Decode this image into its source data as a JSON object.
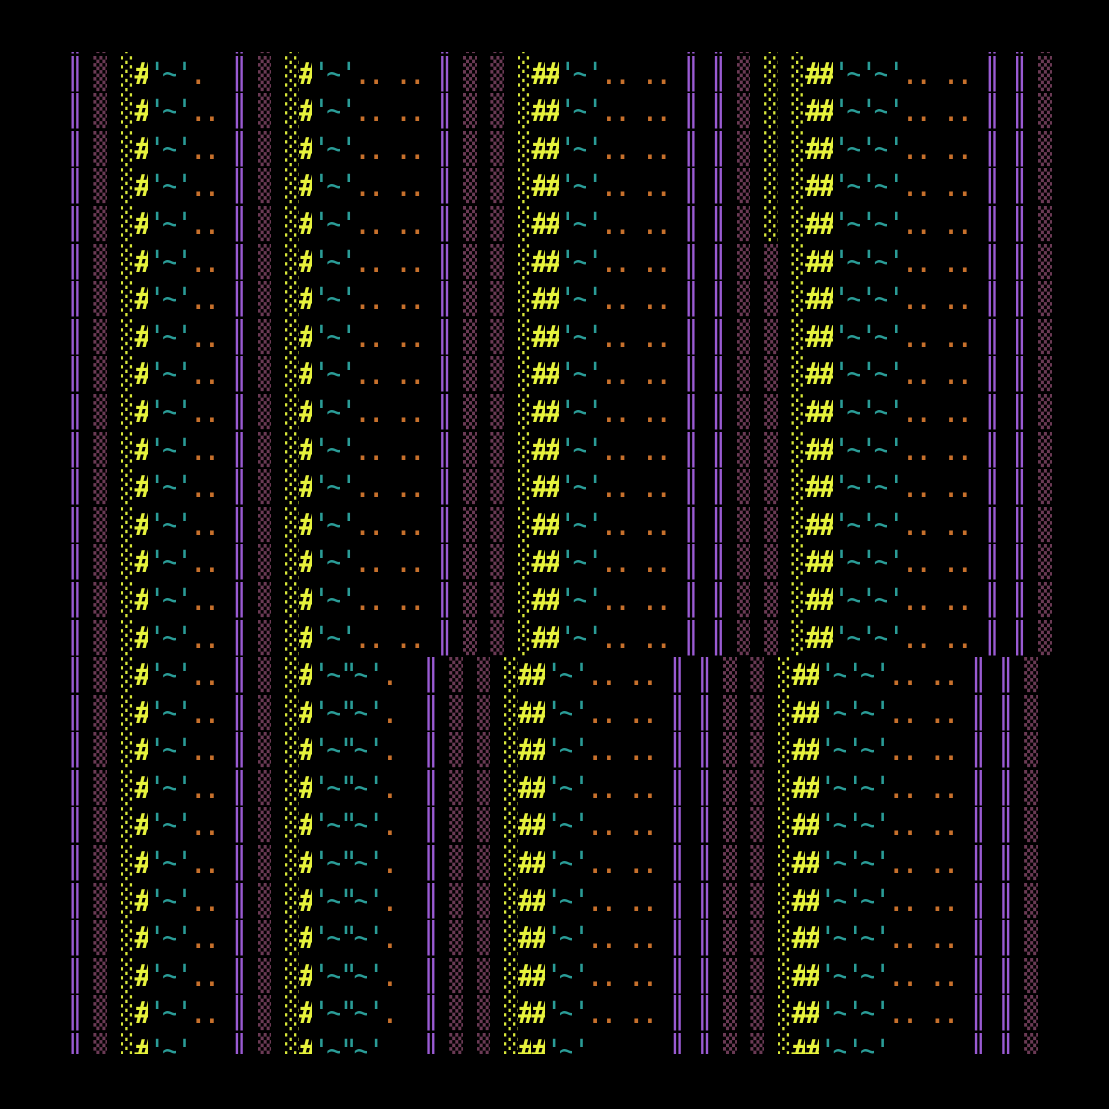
{
  "art": {
    "rows": [
      "║ ▒ ░#'~'.  ║ ▒ ░#'~'.. .. ║ ▒ ▒ ░##'~'.. .. ║ ║ ▒ ░ ░##'~'~'.. .. ║ ║ ▒ ",
      "║ ▒ ░#'~'.  ║ ▒ ░#'~'.. .. ║ ▒ ▒ ░##'~'.. .. ║ ║ ▒ ░ ░##'~'~'.. .. ║ ║ ▒ ",
      "║ ▒ ░#'~'.. ║ ▒ ░#'~'.. .. ║ ▒ ▒ ░##'~'.. .. ║ ║ ▒ ░ ░##'~'~'.. .. ║ ║ ▒ ",
      "║ ▒ ░#'~'.. ║ ▒ ░#'~'.. .. ║ ▒ ▒ ░##'~'.. .. ║ ║ ▒ ░ ░##'~'~'.. .. ║ ║ ▒ ",
      "║ ▒ ░#'~'.. ║ ▒ ░#'~'.. .. ║ ▒ ▒ ░##'~'.. .. ║ ║ ▒ ░ ░##'~'~'.. .. ║ ║ ▒ ",
      "║ ▒ ░#'~'.. ║ ▒ ░#'~'.. .. ║ ▒ ▒ ░##'~'.. .. ║ ║ ▒ ░ ░##'~'~'.. .. ║ ║ ▒ ",
      "║ ▒ ░#'~'.. ║ ▒ ░#'~'.. .. ║ ▒ ▒ ░##'~'.. .. ║ ║ ▒ ▒ ░##'~'~'.. .. ║ ║ ▒ ",
      "║ ▒ ░#'~'.. ║ ▒ ░#'~'.. .. ║ ▒ ▒ ░##'~'.. .. ║ ║ ▒ ▒ ░##'~'~'.. .. ║ ║ ▒ ",
      "║ ▒ ░#'~'.. ║ ▒ ░#'~'.. .. ║ ▒ ▒ ░##'~'.. .. ║ ║ ▒ ▒ ░##'~'~'.. .. ║ ║ ▒ ",
      "║ ▒ ░#'~'.. ║ ▒ ░#'~'.. .. ║ ▒ ▒ ░##'~'.. .. ║ ║ ▒ ▒ ░##'~'~'.. .. ║ ║ ▒ ",
      "║ ▒ ░#'~'.. ║ ▒ ░#'~'.. .. ║ ▒ ▒ ░##'~'.. .. ║ ║ ▒ ▒ ░##'~'~'.. .. ║ ║ ▒ ",
      "║ ▒ ░#'~'.. ║ ▒ ░#'~'.. .. ║ ▒ ▒ ░##'~'.. .. ║ ║ ▒ ▒ ░##'~'~'.. .. ║ ║ ▒ ",
      "║ ▒ ░#'~'.. ║ ▒ ░#'~'.. .. ║ ▒ ▒ ░##'~'.. .. ║ ║ ▒ ▒ ░##'~'~'.. .. ║ ║ ▒ ",
      "║ ▒ ░#'~'.. ║ ▒ ░#'~'.. .. ║ ▒ ▒ ░##'~'.. .. ║ ║ ▒ ▒ ░##'~'~'.. .. ║ ║ ▒ ",
      "║ ▒ ░#'~'.. ║ ▒ ░#'~'.. .. ║ ▒ ▒ ░##'~'.. .. ║ ║ ▒ ▒ ░##'~'~'.. .. ║ ║ ▒ ",
      "║ ▒ ░#'~'.. ║ ▒ ░#'~'.. .. ║ ▒ ▒ ░##'~'.. .. ║ ║ ▒ ▒ ░##'~'~'.. .. ║ ║ ▒ ",
      "║ ▒ ░#'~'.. ║ ▒ ░#'~'.. .. ║ ▒ ▒ ░##'~'.. .. ║ ║ ▒ ▒ ░##'~'~'.. .. ║ ║ ▒ ",
      "║ ▒ ░#'~'.. ║ ▒ ░#'~\"~'.  ║ ▒ ▒ ░##'~'.. .. ║ ║ ▒ ▒ ░##'~'~'.. .. ║ ║ ▒ ",
      "║ ▒ ░#'~'.. ║ ▒ ░#'~\"~'.  ║ ▒ ▒ ░##'~'.. .. ║ ║ ▒ ▒ ░##'~'~'.. .. ║ ║ ▒ ",
      "║ ▒ ░#'~'.. ║ ▒ ░#'~\"~'.  ║ ▒ ▒ ░##'~'.. .. ║ ║ ▒ ▒ ░##'~'~'.. .. ║ ║ ▒ ",
      "║ ▒ ░#'~'.. ║ ▒ ░#'~\"~'.  ║ ▒ ▒ ░##'~'.. .. ║ ║ ▒ ▒ ░##'~'~'.. .. ║ ║ ▒ ",
      "║ ▒ ░#'~'.. ║ ▒ ░#'~\"~'.  ║ ▒ ▒ ░##'~'.. .. ║ ║ ▒ ▒ ░##'~'~'.. .. ║ ║ ▒ ",
      "║ ▒ ░#'~'.. ║ ▒ ░#'~\"~'.  ║ ▒ ▒ ░##'~'.. .. ║ ║ ▒ ▒ ░##'~'~'.. .. ║ ║ ▒ ",
      "║ ▒ ░#'~'.. ║ ▒ ░#'~\"~'.  ║ ▒ ▒ ░##'~'.. .. ║ ║ ▒ ▒ ░##'~'~'.. .. ║ ║ ▒ ",
      "║ ▒ ░#'~'.. ║ ▒ ░#'~\"~'.  ║ ▒ ▒ ░##'~'.. .. ║ ║ ▒ ▒ ░##'~'~'.. .. ║ ║ ▒ ",
      "║ ▒ ░#'~'.. ║ ▒ ░#'~\"~'.  ║ ▒ ▒ ░##'~'.. .. ║ ║ ▒ ▒ ░##'~'~'.. .. ║ ║ ▒ ",
      "║ ▒ ░#'~'.. ║ ▒ ░#'~\"~'.  ║ ▒ ▒ ░##'~'.. .. ║ ║ ▒ ▒ ░##'~'~'.. .. ║ ║ ▒ ",
      "║ ▒ ░#'~'.. ║ ▒ ░#'~\"~'.  ║ ▒ ▒ ░##'~'.. .. ║ ║ ▒ ▒ ░##'~'~'.. .. ║ ║ ▒ ",
      "║ ▒ ░#'~'.. ║ ▒ ░#'~\"~'.  ║ ▒ ▒ ░##'~'.. .. ║ ║ ▒ ▒ ░##'~'~'.. .. ║ ║ ▒ "
    ],
    "colors": {
      "background": "#000000",
      "bar": "#9a5bd3",
      "block": "#6b3a55",
      "dots": "#d9e83a",
      "hash": "#e6f23c",
      "tilde": "#2a9c97",
      "dot_orange": "#c8712c"
    }
  }
}
